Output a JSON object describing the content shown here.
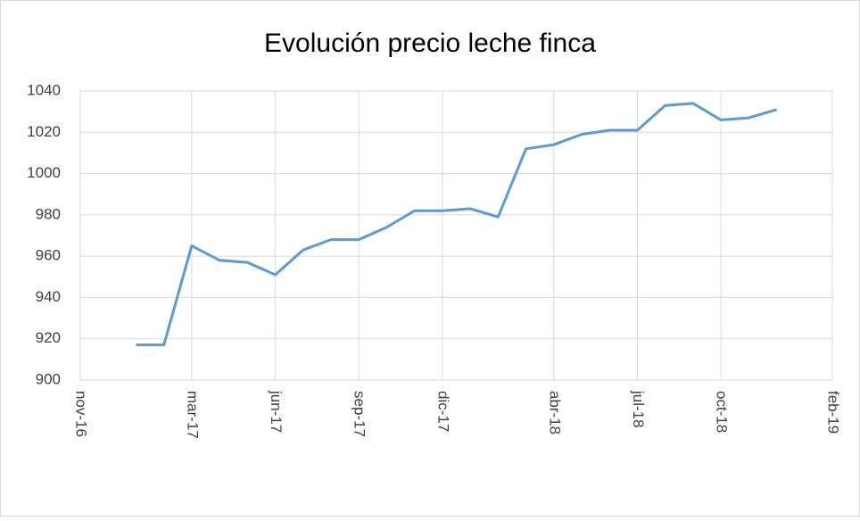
{
  "chart_data": {
    "type": "line",
    "title": "Evolución precio leche finca",
    "x": [
      "2017-01",
      "2017-02",
      "2017-03",
      "2017-04",
      "2017-05",
      "2017-06",
      "2017-07",
      "2017-08",
      "2017-09",
      "2017-10",
      "2017-11",
      "2017-12",
      "2018-01",
      "2018-02",
      "2018-03",
      "2018-04",
      "2018-05",
      "2018-06",
      "2018-07",
      "2018-08",
      "2018-09",
      "2018-10",
      "2018-11",
      "2018-12"
    ],
    "series": [
      {
        "color": "#5b9bd5",
        "values": [
          917,
          917,
          965,
          958,
          957,
          951,
          963,
          968,
          968,
          974,
          982,
          982,
          983,
          979,
          1012,
          1014,
          1019,
          1021,
          1021,
          1033,
          1034,
          1026,
          1027,
          1031
        ]
      }
    ],
    "xlim": [
      "2016-11",
      "2019-02"
    ],
    "xticks": [
      {
        "value": "2016-11",
        "label": "nov-16"
      },
      {
        "value": "2017-03",
        "label": "mar-17"
      },
      {
        "value": "2017-06",
        "label": "jun-17"
      },
      {
        "value": "2017-09",
        "label": "sep-17"
      },
      {
        "value": "2017-12",
        "label": "dic-17"
      },
      {
        "value": "2018-04",
        "label": "abr-18"
      },
      {
        "value": "2018-07",
        "label": "jul-18"
      },
      {
        "value": "2018-10",
        "label": "oct-18"
      },
      {
        "value": "2019-02",
        "label": "feb-19"
      }
    ],
    "ylim": [
      900,
      1040
    ],
    "yticks": [
      900,
      920,
      940,
      960,
      980,
      1000,
      1020,
      1040
    ],
    "grid": true
  }
}
